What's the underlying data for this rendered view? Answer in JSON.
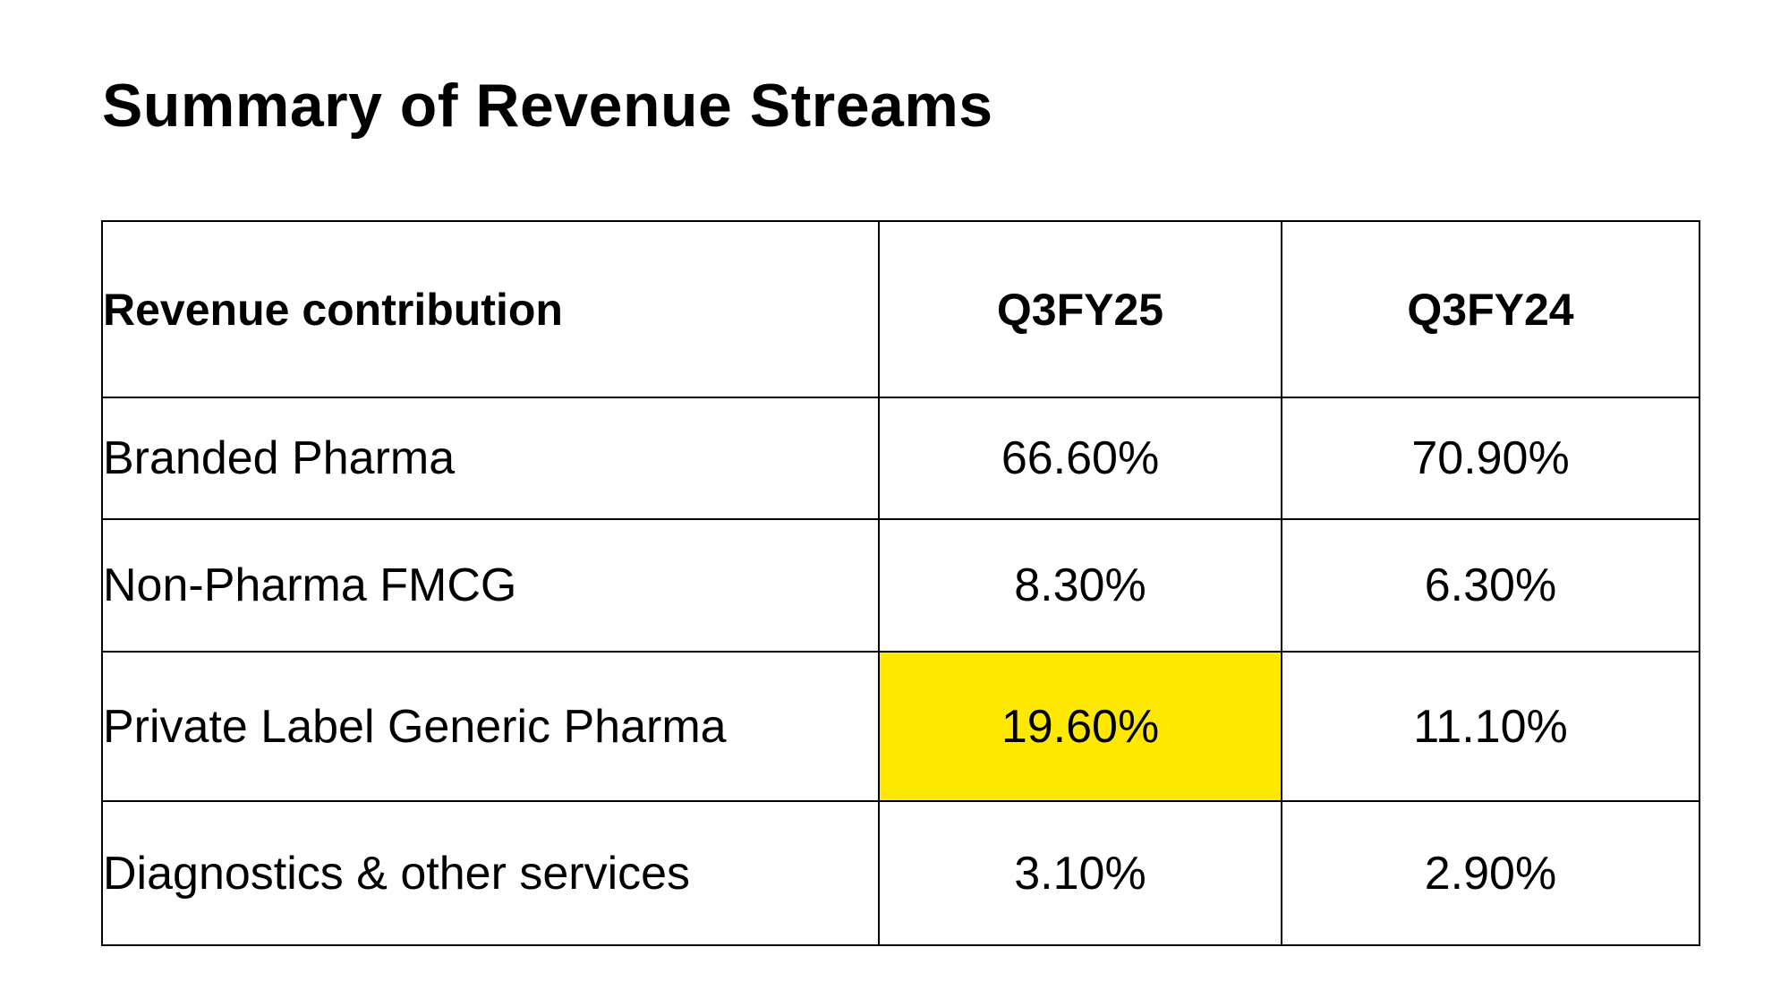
{
  "title": "Summary of Revenue Streams",
  "table": {
    "headers": [
      "Revenue contribution",
      "Q3FY25",
      "Q3FY24"
    ],
    "rows": [
      {
        "label": "Branded Pharma",
        "q3fy25": "66.60%",
        "q3fy24": "70.90%"
      },
      {
        "label": "Non-Pharma FMCG",
        "q3fy25": "8.30%",
        "q3fy24": "6.30%"
      },
      {
        "label": "Private Label Generic Pharma",
        "q3fy25": "19.60%",
        "q3fy24": "11.10%"
      },
      {
        "label": "Diagnostics & other services",
        "q3fy25": "3.10%",
        "q3fy24": "2.90%"
      }
    ]
  },
  "colors": {
    "highlight": "#ffe900",
    "border": "#000000",
    "text": "#000000",
    "background": "#ffffff"
  }
}
